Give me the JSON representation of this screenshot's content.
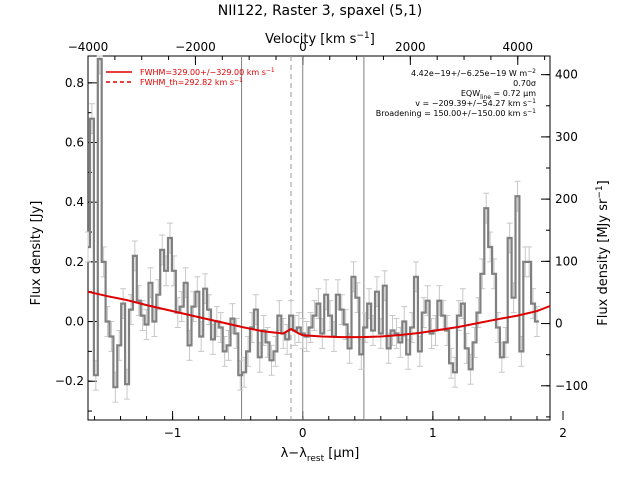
{
  "chart_data": {
    "type": "line",
    "title": "NII122, Raster 3, spaxel (5,1)",
    "xlabel": "λ−λ",
    "xlabel_sub": "rest",
    "xlabel_unit": " [μm]",
    "ylabel": "Flux density [Jy]",
    "top_xlabel": "Velocity [km s",
    "top_xlabel_sup": "−1",
    "top_xlabel_end": "]",
    "right_ylabel": "Flux density [MJy sr",
    "right_ylabel_sup": "−1",
    "right_ylabel_end": "]",
    "xlim": [
      -1.65,
      1.9
    ],
    "ylim": [
      -0.33,
      0.89
    ],
    "top_xlim": [
      -4000,
      4600
    ],
    "right_ylim": [
      -155,
      430
    ],
    "x_ticks": [
      -1,
      0,
      1,
      2
    ],
    "x_tick_labels": [
      "−1",
      "0",
      "1",
      "2"
    ],
    "y_ticks": [
      -0.2,
      0.0,
      0.2,
      0.4,
      0.6,
      0.8
    ],
    "y_tick_labels": [
      "−0.2",
      "0.0",
      "0.2",
      "0.4",
      "0.6",
      "0.8"
    ],
    "top_ticks": [
      -4000,
      -2000,
      0,
      2000,
      4000
    ],
    "top_tick_labels": [
      "−4000",
      "−2000",
      "0",
      "2000",
      "4000"
    ],
    "right_ticks": [
      -100,
      0,
      100,
      200,
      300,
      400
    ],
    "right_tick_labels": [
      "−100",
      "0",
      "100",
      "200",
      "300",
      "400"
    ],
    "legend": [
      {
        "label": "FWHM=329.00+/−329.00 km s",
        "sup": "−1",
        "style": "solid",
        "color": "#dd0000"
      },
      {
        "label": "FWHM_th=292.82 km s",
        "sup": "−1",
        "style": "dashed",
        "color": "#dd0000"
      }
    ],
    "annotations": [
      {
        "text": "4.42e−19+/−6.25e−19 W m",
        "sup": "−2"
      },
      {
        "text": "0.70σ"
      },
      {
        "text": "EQW",
        "sub": "line",
        "tail": " = 0.72 μm"
      },
      {
        "text": "v = −209.39+/−54.27 km s",
        "sup": "−1"
      },
      {
        "text": "Broadening = 150.00+/−150.00 km s",
        "sup": "−1"
      }
    ],
    "vlines": [
      {
        "x": -0.47,
        "style": "solid",
        "color": "#808080"
      },
      {
        "x": -0.09,
        "style": "dashed",
        "color": "#999999"
      },
      {
        "x": 0.0,
        "style": "solid",
        "color": "#808080"
      },
      {
        "x": 0.47,
        "style": "solid",
        "color": "#808080"
      }
    ],
    "series": [
      {
        "kind": "steps",
        "color": "#808080",
        "x": [
          -1.65,
          -1.62,
          -1.59,
          -1.56,
          -1.53,
          -1.5,
          -1.47,
          -1.44,
          -1.41,
          -1.38,
          -1.35,
          -1.32,
          -1.29,
          -1.26,
          -1.23,
          -1.2,
          -1.17,
          -1.14,
          -1.11,
          -1.08,
          -1.05,
          -1.02,
          -0.99,
          -0.96,
          -0.93,
          -0.9,
          -0.87,
          -0.84,
          -0.81,
          -0.78,
          -0.75,
          -0.72,
          -0.69,
          -0.66,
          -0.63,
          -0.6,
          -0.57,
          -0.54,
          -0.51,
          -0.48,
          -0.45,
          -0.42,
          -0.39,
          -0.36,
          -0.33,
          -0.3,
          -0.27,
          -0.24,
          -0.21,
          -0.18,
          -0.15,
          -0.12,
          -0.09,
          -0.06,
          -0.03,
          0.0,
          0.03,
          0.06,
          0.09,
          0.12,
          0.15,
          0.18,
          0.21,
          0.24,
          0.27,
          0.3,
          0.33,
          0.36,
          0.39,
          0.42,
          0.45,
          0.48,
          0.51,
          0.54,
          0.57,
          0.6,
          0.63,
          0.66,
          0.69,
          0.72,
          0.75,
          0.78,
          0.81,
          0.84,
          0.87,
          0.9,
          0.93,
          0.96,
          0.99,
          1.02,
          1.05,
          1.08,
          1.11,
          1.14,
          1.17,
          1.2,
          1.23,
          1.26,
          1.29,
          1.32,
          1.35,
          1.38,
          1.41,
          1.44,
          1.47,
          1.5,
          1.53,
          1.56,
          1.59,
          1.62,
          1.65,
          1.68,
          1.71,
          1.74,
          1.77,
          1.8
        ],
        "y": [
          0.25,
          0.68,
          -0.18,
          0.88,
          0.2,
          0.0,
          -0.05,
          -0.22,
          -0.08,
          0.06,
          -0.21,
          0.04,
          0.22,
          0.07,
          0.02,
          -0.01,
          0.13,
          0.0,
          0.09,
          0.24,
          0.17,
          0.28,
          0.17,
          0.03,
          0.05,
          0.13,
          -0.08,
          0.05,
          0.1,
          -0.05,
          0.11,
          0.04,
          -0.06,
          0.0,
          -0.02,
          -0.1,
          -0.08,
          0.01,
          -0.04,
          -0.18,
          -0.17,
          -0.1,
          -0.02,
          0.04,
          -0.12,
          -0.03,
          -0.07,
          -0.13,
          -0.1,
          0.02,
          -0.04,
          -0.06,
          0.02,
          -0.03,
          -0.02,
          -0.04,
          -0.05,
          -0.02,
          0.02,
          0.06,
          -0.04,
          0.09,
          0.02,
          -0.05,
          0.09,
          0.04,
          -0.01,
          -0.09,
          0.15,
          0.08,
          -0.11,
          -0.02,
          0.06,
          -0.03,
          0.1,
          -0.04,
          0.12,
          -0.09,
          -0.03,
          -0.04,
          -0.07,
          0.0,
          -0.11,
          -0.02,
          0.15,
          -0.1,
          0.03,
          0.07,
          -0.04,
          -0.03,
          0.07,
          0.02,
          -0.03,
          -0.14,
          -0.17,
          0.02,
          0.06,
          -0.09,
          -0.16,
          -0.07,
          0.03,
          0.16,
          0.38,
          0.25,
          0.16,
          -0.02,
          -0.12,
          -0.07,
          0.28,
          0.08,
          0.42,
          -0.1,
          0.2,
          0.2,
          0.06,
          0.0
        ]
      },
      {
        "kind": "fit",
        "color": "#dd0000",
        "x": [
          -1.65,
          -1.5,
          -1.35,
          -1.2,
          -1.05,
          -0.9,
          -0.75,
          -0.6,
          -0.45,
          -0.3,
          -0.15,
          -0.09,
          -0.03,
          0.0,
          0.15,
          0.3,
          0.45,
          0.6,
          0.75,
          0.9,
          1.05,
          1.2,
          1.35,
          1.5,
          1.65,
          1.8,
          1.9
        ],
        "y": [
          0.1,
          0.085,
          0.072,
          0.055,
          0.04,
          0.025,
          0.01,
          -0.005,
          -0.02,
          -0.033,
          -0.04,
          -0.025,
          -0.04,
          -0.046,
          -0.05,
          -0.052,
          -0.052,
          -0.05,
          -0.045,
          -0.038,
          -0.028,
          -0.018,
          -0.005,
          0.008,
          0.02,
          0.035,
          0.052
        ]
      }
    ]
  }
}
